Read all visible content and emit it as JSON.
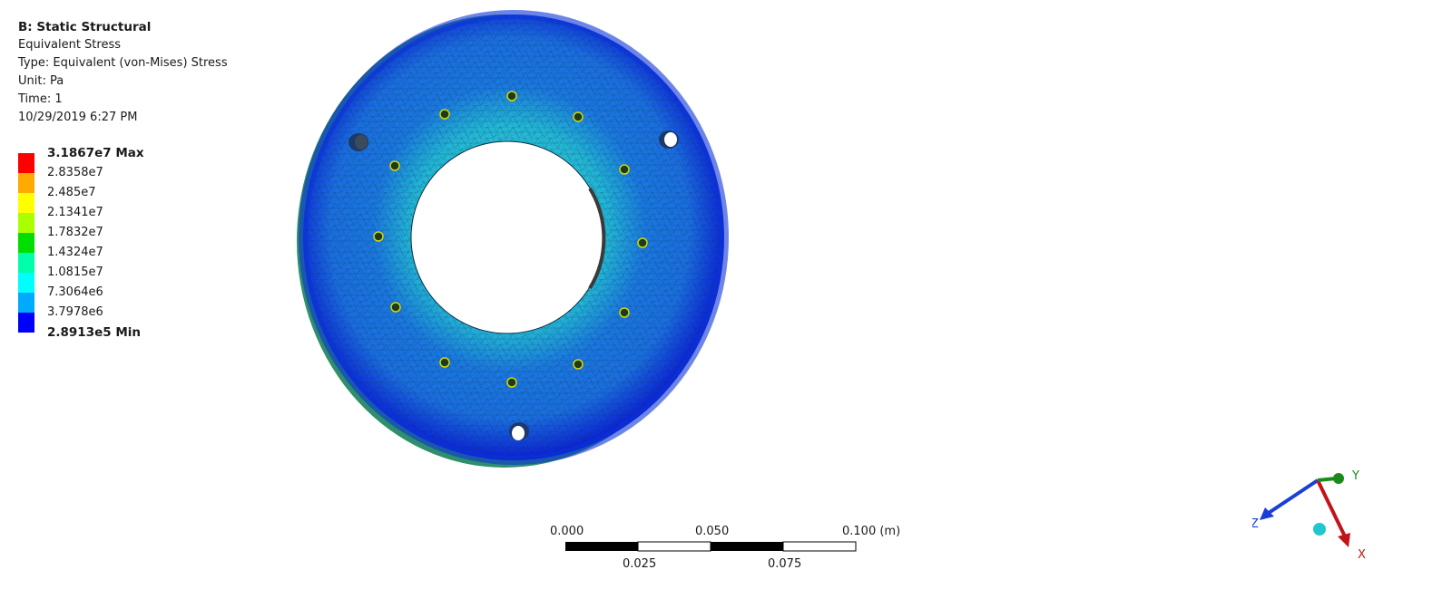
{
  "header": {
    "system": "B: Static Structural",
    "result": "Equivalent Stress",
    "type": "Type: Equivalent (von-Mises) Stress",
    "unit": "Unit: Pa",
    "time": "Time: 1",
    "timestamp": "10/29/2019 6:27 PM"
  },
  "legend": {
    "max_label": "3.1867e7 Max",
    "min_label": "2.8913e5 Min",
    "levels": [
      "2.8358e7",
      "2.485e7",
      "2.1341e7",
      "1.7832e7",
      "1.4324e7",
      "1.0815e7",
      "7.3064e6",
      "3.7978e6"
    ],
    "colors": [
      "#ff0000",
      "#ffaa00",
      "#ffff00",
      "#aaff00",
      "#00e000",
      "#00ffaa",
      "#00ffff",
      "#00aaff",
      "#0000ff"
    ]
  },
  "scale_bar": {
    "top_labels": [
      "0.000",
      "0.050",
      "0.100 (m)"
    ],
    "bottom_labels": [
      "0.025",
      "0.075"
    ]
  },
  "triad": {
    "x_label": "X",
    "y_label": "Y",
    "z_label": "Z",
    "colors": {
      "x": "#c0141a",
      "y": "#1a8a1a",
      "z": "#1a3fd6"
    }
  }
}
